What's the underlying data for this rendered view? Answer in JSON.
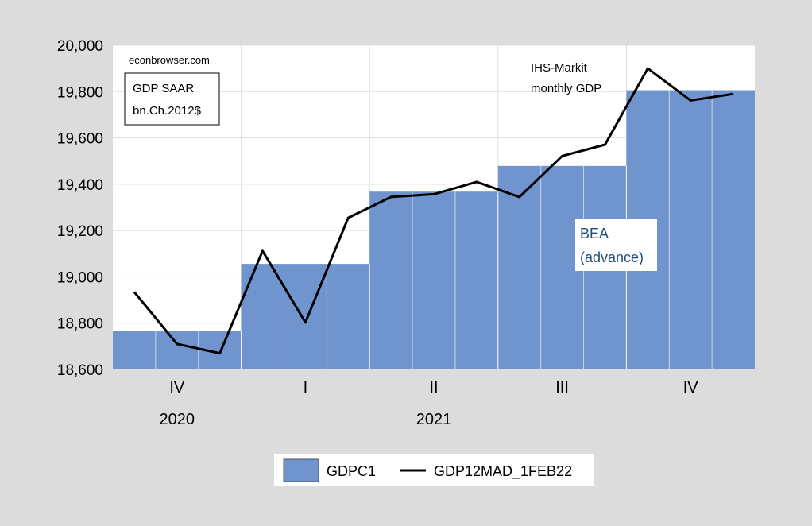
{
  "chart_data": {
    "type": "bar+line",
    "yticks": [
      "18,600",
      "18,800",
      "19,000",
      "19,200",
      "19,400",
      "19,600",
      "19,800",
      "20,000"
    ],
    "ylim": [
      18600,
      20000
    ],
    "quarters": [
      "IV",
      "I",
      "II",
      "III",
      "IV"
    ],
    "years": [
      {
        "label": "2020",
        "quarter_index": 0
      },
      {
        "label": "2021",
        "quarter_index": 2
      }
    ],
    "months": 15,
    "grid": true,
    "legend_position": "bottom",
    "series": [
      {
        "name": "GDPC1",
        "kind": "step-bar",
        "color": "#7094cd",
        "quarterly_values": [
          18767,
          19056,
          19368,
          19479,
          19806
        ]
      },
      {
        "name": "GDP12MAD_1FEB22",
        "kind": "line",
        "color": "#000000",
        "values": [
          18935,
          18710,
          18670,
          19112,
          18803,
          19255,
          19345,
          19357,
          19410,
          19345,
          19522,
          19571,
          19900,
          19762,
          19790
        ]
      }
    ],
    "annotations": {
      "source": "econbrowser.com",
      "units_line1": "GDP SAAR",
      "units_line2": "bn.Ch.2012$",
      "ihs_line1": "IHS-Markit",
      "ihs_line2": "monthly GDP",
      "bea_line1": "BEA",
      "bea_line2": "(advance)"
    }
  }
}
